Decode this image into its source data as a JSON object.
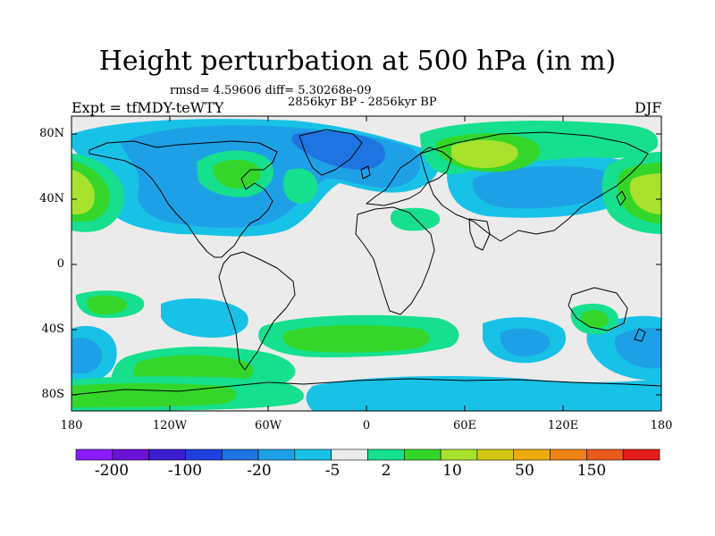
{
  "title": "Height perturbation at 500 hPa (in m)",
  "stats": "rmsd= 4.59606 diff= 5.30268e-09",
  "period": "2856kyr BP - 2856kyr BP",
  "expt": "Expt = tfMDY-teWTY",
  "season": "DJF",
  "lat_labels": [
    "80N",
    "40N",
    "0",
    "40S",
    "80S"
  ],
  "lon_labels": [
    "180",
    "120W",
    "60W",
    "0",
    "60E",
    "120E",
    "180"
  ],
  "colorbar": {
    "labels": [
      "-200",
      "-100",
      "-20",
      "-5",
      "2",
      "10",
      "50",
      "150"
    ],
    "colors": [
      "#8c1aff",
      "#6a12d8",
      "#3c1ccf",
      "#1f3fdf",
      "#1e74e0",
      "#1ea0e6",
      "#18c2e6",
      "#ebebeb",
      "#16df8e",
      "#35d62a",
      "#a8e22c",
      "#d2c814",
      "#ecac0c",
      "#ef8214",
      "#ea5a1c",
      "#e41c1c"
    ]
  },
  "field_colors": {
    "background": "#ebebeb",
    "neg_weak": "#18c2e6",
    "neg_mid": "#1ea0e6",
    "neg_strong": "#1e74e0",
    "pos_weak": "#16df8e",
    "pos_mid": "#35d62a",
    "pos_strong": "#a8e22c",
    "pos_max": "#d2c814"
  },
  "coastline_color": "#000000"
}
